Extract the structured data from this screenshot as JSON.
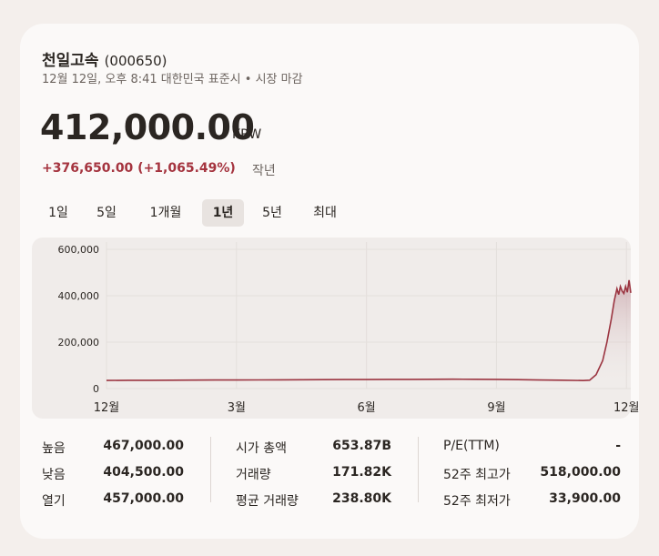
{
  "stock": {
    "name": "천일고속",
    "code": "(000650)",
    "subtitle": "12월 12일, 오후 8:41 대한민국 표준시 • 시장 마감",
    "price": "412,000.00",
    "currency": "KRW",
    "change": "+376,650.00 (+1,065.49%)",
    "change_period": "작년"
  },
  "colors": {
    "line": "#9b3440",
    "negative": "#a5343f"
  },
  "tabs": [
    {
      "label": "1일",
      "active": false
    },
    {
      "label": "5일",
      "active": false
    },
    {
      "label": "1개월",
      "active": false
    },
    {
      "label": "1년",
      "active": true
    },
    {
      "label": "5년",
      "active": false
    },
    {
      "label": "최대",
      "active": false
    }
  ],
  "chart_data": {
    "type": "line",
    "ylim": [
      0,
      600000
    ],
    "y_ticks": [
      0,
      200000,
      400000,
      600000
    ],
    "y_tick_labels": [
      "0",
      "200,000",
      "400,000",
      "600,000"
    ],
    "x_tick_labels": [
      "12월",
      "3월",
      "6월",
      "9월",
      "12월"
    ],
    "x_tick_positions": [
      0,
      3,
      6,
      9,
      12
    ],
    "x_range": [
      0,
      12.1
    ],
    "grid": true,
    "series": [
      {
        "x": [
          0,
          0.5,
          1,
          1.5,
          2,
          2.5,
          3,
          3.5,
          4,
          4.5,
          5,
          5.5,
          6,
          6.5,
          7,
          7.5,
          8,
          8.5,
          9,
          9.5,
          10,
          10.5,
          11,
          11.15,
          11.3,
          11.45,
          11.55,
          11.65,
          11.72,
          11.78,
          11.82,
          11.86,
          11.9,
          11.94,
          11.98,
          12.02,
          12.06,
          12.1
        ],
        "values": [
          35000,
          35500,
          35800,
          36000,
          36500,
          36800,
          37000,
          37300,
          37800,
          38000,
          38500,
          38800,
          39000,
          39500,
          39800,
          40000,
          40500,
          40000,
          39500,
          38500,
          37000,
          36000,
          34500,
          36000,
          60000,
          120000,
          200000,
          300000,
          380000,
          430000,
          405000,
          440000,
          420000,
          410000,
          440000,
          415000,
          467000,
          412000
        ]
      }
    ]
  },
  "stats": {
    "col1": [
      {
        "label": "높음",
        "value": "467,000.00"
      },
      {
        "label": "낮음",
        "value": "404,500.00"
      },
      {
        "label": "열기",
        "value": "457,000.00"
      }
    ],
    "col2": [
      {
        "label": "시가 총액",
        "value": "653.87B"
      },
      {
        "label": "거래량",
        "value": "171.82K"
      },
      {
        "label": "평균 거래량",
        "value": "238.80K"
      }
    ],
    "col3": [
      {
        "label": "P/E(TTM)",
        "value": "-"
      },
      {
        "label": "52주 최고가",
        "value": "518,000.00"
      },
      {
        "label": "52주 최저가",
        "value": "33,900.00"
      }
    ]
  }
}
